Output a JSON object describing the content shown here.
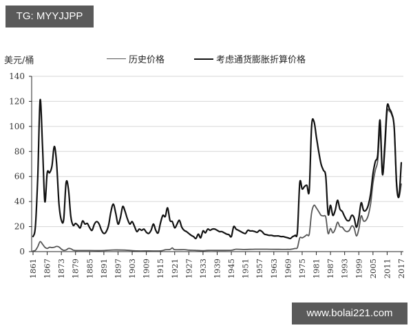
{
  "watermarks": {
    "top_left": "TG: MYYJJPP",
    "bottom_right": "www.bolai221.com"
  },
  "chart_data": {
    "type": "line",
    "title": "",
    "ylabel": "美元/桶",
    "xlabel": "",
    "ylim": [
      0,
      140
    ],
    "yticks": [
      0,
      20,
      40,
      60,
      80,
      100,
      120,
      140
    ],
    "xticks": [
      "1861",
      "1867",
      "1873",
      "1879",
      "1885",
      "1891",
      "1897",
      "1903",
      "1909",
      "1915",
      "1921",
      "1927",
      "1933",
      "1939",
      "1945",
      "1951",
      "1957",
      "1963",
      "1969",
      "1975",
      "1981",
      "1987",
      "1993",
      "1999",
      "2005",
      "2011",
      "2017"
    ],
    "xlim": [
      1861,
      2017
    ],
    "grid": "horizontal",
    "legend_position": "top",
    "series": [
      {
        "name": "历史价格",
        "color": "#555555",
        "points": [
          [
            1861,
            0.5
          ],
          [
            1862,
            1
          ],
          [
            1863,
            4
          ],
          [
            1864,
            8
          ],
          [
            1865,
            6
          ],
          [
            1866,
            3.5
          ],
          [
            1867,
            2.5
          ],
          [
            1868,
            3.5
          ],
          [
            1869,
            3.2
          ],
          [
            1870,
            3.5
          ],
          [
            1871,
            4.2
          ],
          [
            1872,
            3.7
          ],
          [
            1873,
            2
          ],
          [
            1874,
            1
          ],
          [
            1875,
            1.3
          ],
          [
            1876,
            2.5
          ],
          [
            1877,
            2.3
          ],
          [
            1878,
            1.2
          ],
          [
            1879,
            0.9
          ],
          [
            1880,
            0.9
          ],
          [
            1885,
            0.9
          ],
          [
            1890,
            0.8
          ],
          [
            1895,
            1.3
          ],
          [
            1900,
            1.2
          ],
          [
            1905,
            0.6
          ],
          [
            1910,
            0.6
          ],
          [
            1915,
            0.6
          ],
          [
            1917,
            1.5
          ],
          [
            1919,
            1.7
          ],
          [
            1920,
            3
          ],
          [
            1921,
            1.6
          ],
          [
            1925,
            1.6
          ],
          [
            1927,
            1.2
          ],
          [
            1930,
            1
          ],
          [
            1933,
            0.7
          ],
          [
            1935,
            1
          ],
          [
            1940,
            1
          ],
          [
            1945,
            1.1
          ],
          [
            1947,
            1.9
          ],
          [
            1950,
            1.7
          ],
          [
            1955,
            1.9
          ],
          [
            1960,
            1.9
          ],
          [
            1965,
            1.8
          ],
          [
            1969,
            1.8
          ],
          [
            1970,
            1.8
          ],
          [
            1972,
            2.5
          ],
          [
            1973,
            3.3
          ],
          [
            1974,
            11
          ],
          [
            1975,
            11
          ],
          [
            1976,
            12
          ],
          [
            1977,
            13.5
          ],
          [
            1978,
            14
          ],
          [
            1979,
            31
          ],
          [
            1980,
            37
          ],
          [
            1981,
            35
          ],
          [
            1982,
            32
          ],
          [
            1983,
            29
          ],
          [
            1984,
            28.5
          ],
          [
            1985,
            27.5
          ],
          [
            1986,
            14.5
          ],
          [
            1987,
            18.5
          ],
          [
            1988,
            15
          ],
          [
            1989,
            18
          ],
          [
            1990,
            23.5
          ],
          [
            1991,
            20
          ],
          [
            1992,
            19.5
          ],
          [
            1993,
            17
          ],
          [
            1994,
            16
          ],
          [
            1995,
            17
          ],
          [
            1996,
            20.5
          ],
          [
            1997,
            19
          ],
          [
            1998,
            12.5
          ],
          [
            1999,
            18
          ],
          [
            2000,
            28.5
          ],
          [
            2001,
            24.5
          ],
          [
            2002,
            25
          ],
          [
            2003,
            29
          ],
          [
            2004,
            38
          ],
          [
            2005,
            54.5
          ],
          [
            2006,
            65
          ],
          [
            2007,
            72.5
          ],
          [
            2008,
            97
          ],
          [
            2009,
            61.5
          ],
          [
            2010,
            79.5
          ],
          [
            2011,
            111
          ],
          [
            2012,
            112
          ],
          [
            2013,
            109
          ],
          [
            2014,
            99
          ],
          [
            2015,
            52
          ],
          [
            2016,
            43.5
          ],
          [
            2017,
            54
          ]
        ]
      },
      {
        "name": "考虑通货膨胀折算价格",
        "color": "#111111",
        "points": [
          [
            1861,
            12
          ],
          [
            1862,
            20
          ],
          [
            1863,
            60
          ],
          [
            1864,
            121
          ],
          [
            1865,
            85
          ],
          [
            1866,
            40
          ],
          [
            1867,
            63
          ],
          [
            1868,
            63
          ],
          [
            1869,
            68
          ],
          [
            1870,
            84
          ],
          [
            1871,
            70
          ],
          [
            1872,
            38
          ],
          [
            1873,
            25
          ],
          [
            1874,
            26
          ],
          [
            1875,
            55
          ],
          [
            1876,
            50
          ],
          [
            1877,
            28
          ],
          [
            1878,
            21
          ],
          [
            1879,
            22.5
          ],
          [
            1880,
            21
          ],
          [
            1881,
            19
          ],
          [
            1882,
            24.5
          ],
          [
            1883,
            22
          ],
          [
            1884,
            22.5
          ],
          [
            1885,
            19
          ],
          [
            1886,
            17
          ],
          [
            1887,
            22
          ],
          [
            1888,
            24
          ],
          [
            1889,
            22
          ],
          [
            1890,
            17
          ],
          [
            1891,
            14.5
          ],
          [
            1892,
            16
          ],
          [
            1893,
            21
          ],
          [
            1894,
            32
          ],
          [
            1895,
            38
          ],
          [
            1896,
            31
          ],
          [
            1897,
            22
          ],
          [
            1898,
            27
          ],
          [
            1899,
            36
          ],
          [
            1900,
            32
          ],
          [
            1901,
            26
          ],
          [
            1902,
            22
          ],
          [
            1903,
            24
          ],
          [
            1904,
            20
          ],
          [
            1905,
            16
          ],
          [
            1906,
            18
          ],
          [
            1907,
            17
          ],
          [
            1908,
            18
          ],
          [
            1909,
            15.5
          ],
          [
            1910,
            14.5
          ],
          [
            1911,
            17
          ],
          [
            1912,
            22
          ],
          [
            1913,
            17
          ],
          [
            1914,
            15
          ],
          [
            1915,
            23
          ],
          [
            1916,
            29
          ],
          [
            1917,
            28
          ],
          [
            1918,
            35
          ],
          [
            1919,
            25
          ],
          [
            1920,
            24
          ],
          [
            1921,
            19
          ],
          [
            1922,
            22
          ],
          [
            1923,
            25
          ],
          [
            1924,
            19.5
          ],
          [
            1925,
            17
          ],
          [
            1926,
            16
          ],
          [
            1927,
            14.5
          ],
          [
            1928,
            13
          ],
          [
            1929,
            12
          ],
          [
            1930,
            10.5
          ],
          [
            1931,
            14
          ],
          [
            1932,
            11
          ],
          [
            1933,
            16.5
          ],
          [
            1934,
            15
          ],
          [
            1935,
            18
          ],
          [
            1936,
            17
          ],
          [
            1937,
            18
          ],
          [
            1938,
            18
          ],
          [
            1939,
            17
          ],
          [
            1940,
            16
          ],
          [
            1941,
            16
          ],
          [
            1942,
            15
          ],
          [
            1943,
            14
          ],
          [
            1944,
            13.5
          ],
          [
            1945,
            12
          ],
          [
            1946,
            20
          ],
          [
            1947,
            18
          ],
          [
            1948,
            17
          ],
          [
            1949,
            16
          ],
          [
            1950,
            15
          ],
          [
            1951,
            14.5
          ],
          [
            1952,
            17
          ],
          [
            1953,
            16.5
          ],
          [
            1954,
            16.5
          ],
          [
            1955,
            16
          ],
          [
            1956,
            15.5
          ],
          [
            1957,
            17
          ],
          [
            1958,
            16
          ],
          [
            1959,
            14
          ],
          [
            1960,
            13.5
          ],
          [
            1961,
            13
          ],
          [
            1962,
            13
          ],
          [
            1963,
            12.5
          ],
          [
            1964,
            12.5
          ],
          [
            1965,
            12.5
          ],
          [
            1966,
            12
          ],
          [
            1967,
            12
          ],
          [
            1968,
            11.5
          ],
          [
            1969,
            11
          ],
          [
            1970,
            10.5
          ],
          [
            1971,
            12
          ],
          [
            1972,
            13
          ],
          [
            1973,
            16
          ],
          [
            1974,
            55
          ],
          [
            1975,
            50
          ],
          [
            1976,
            52
          ],
          [
            1977,
            53
          ],
          [
            1978,
            49
          ],
          [
            1979,
            100
          ],
          [
            1980,
            104
          ],
          [
            1981,
            92
          ],
          [
            1982,
            80
          ],
          [
            1983,
            70
          ],
          [
            1984,
            65
          ],
          [
            1985,
            60
          ],
          [
            1986,
            30
          ],
          [
            1987,
            37
          ],
          [
            1988,
            29
          ],
          [
            1989,
            33
          ],
          [
            1990,
            41
          ],
          [
            1991,
            34
          ],
          [
            1992,
            32
          ],
          [
            1993,
            28
          ],
          [
            1994,
            25
          ],
          [
            1995,
            25
          ],
          [
            1996,
            29
          ],
          [
            1997,
            27
          ],
          [
            1998,
            19.5
          ],
          [
            1999,
            27
          ],
          [
            2000,
            39
          ],
          [
            2001,
            33
          ],
          [
            2002,
            33
          ],
          [
            2003,
            37
          ],
          [
            2004,
            46
          ],
          [
            2005,
            62
          ],
          [
            2006,
            72
          ],
          [
            2007,
            77
          ],
          [
            2008,
            105
          ],
          [
            2009,
            62
          ],
          [
            2010,
            85
          ],
          [
            2011,
            116
          ],
          [
            2012,
            114
          ],
          [
            2013,
            110
          ],
          [
            2014,
            99
          ],
          [
            2015,
            55
          ],
          [
            2016,
            44
          ],
          [
            2017,
            71
          ]
        ]
      }
    ]
  }
}
